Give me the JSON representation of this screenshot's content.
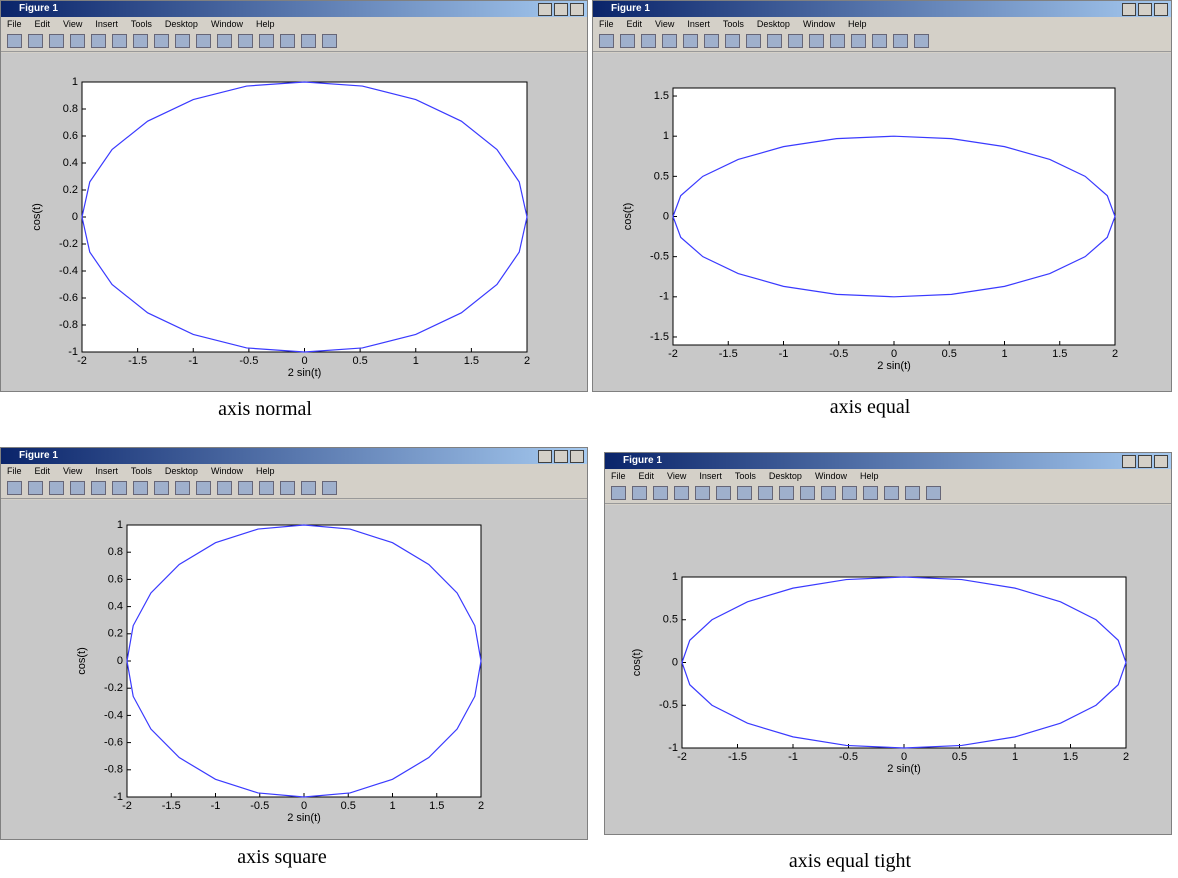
{
  "windows": [
    {
      "title": "Figure 1",
      "menu": [
        "File",
        "Edit",
        "View",
        "Insert",
        "Tools",
        "Desktop",
        "Window",
        "Help"
      ]
    },
    {
      "title": "Figure 1",
      "menu": [
        "File",
        "Edit",
        "View",
        "Insert",
        "Tools",
        "Desktop",
        "Window",
        "Help"
      ]
    },
    {
      "title": "Figure 1",
      "menu": [
        "File",
        "Edit",
        "View",
        "Insert",
        "Tools",
        "Desktop",
        "Window",
        "Help"
      ]
    },
    {
      "title": "Figure 1",
      "menu": [
        "File",
        "Edit",
        "View",
        "Insert",
        "Tools",
        "Desktop",
        "Window",
        "Help"
      ]
    }
  ],
  "captions": [
    "axis normal",
    "axis equal",
    "axis square",
    "axis equal tight"
  ],
  "chart_data": [
    {
      "type": "line",
      "xlabel": "2 sin(t)",
      "ylabel": "cos(t)",
      "x": [
        0,
        0.52,
        1,
        1.41,
        1.73,
        1.93,
        2,
        1.93,
        1.73,
        1.41,
        1,
        0.52,
        0,
        -0.52,
        -1,
        -1.41,
        -1.73,
        -1.93,
        -2,
        -1.93,
        -1.73,
        -1.41,
        -1,
        -0.52,
        0
      ],
      "series": [
        {
          "color": "#3a3aff",
          "values": [
            1,
            0.97,
            0.87,
            0.71,
            0.5,
            0.26,
            0,
            -0.26,
            -0.5,
            -0.71,
            -0.87,
            -0.97,
            -1,
            -0.97,
            -0.87,
            -0.71,
            -0.5,
            -0.26,
            0,
            0.26,
            0.5,
            0.71,
            0.87,
            0.97,
            1
          ]
        }
      ],
      "xlim": [
        -2,
        2
      ],
      "ylim": [
        -1,
        1
      ],
      "xticks": [
        -2,
        -1.5,
        -1,
        -0.5,
        0,
        0.5,
        1,
        1.5,
        2
      ],
      "yticks": [
        -1,
        -0.8,
        -0.6,
        -0.4,
        -0.2,
        0,
        0.2,
        0.4,
        0.6,
        0.8,
        1
      ]
    },
    {
      "type": "line",
      "xlabel": "2 sin(t)",
      "ylabel": "cos(t)",
      "x": [
        0,
        0.52,
        1,
        1.41,
        1.73,
        1.93,
        2,
        1.93,
        1.73,
        1.41,
        1,
        0.52,
        0,
        -0.52,
        -1,
        -1.41,
        -1.73,
        -1.93,
        -2,
        -1.93,
        -1.73,
        -1.41,
        -1,
        -0.52,
        0
      ],
      "series": [
        {
          "color": "#3a3aff",
          "values": [
            1,
            0.97,
            0.87,
            0.71,
            0.5,
            0.26,
            0,
            -0.26,
            -0.5,
            -0.71,
            -0.87,
            -0.97,
            -1,
            -0.97,
            -0.87,
            -0.71,
            -0.5,
            -0.26,
            0,
            0.26,
            0.5,
            0.71,
            0.87,
            0.97,
            1
          ]
        }
      ],
      "xlim": [
        -2,
        2
      ],
      "ylim": [
        -1.6,
        1.6
      ],
      "xticks": [
        -2,
        -1.5,
        -1,
        -0.5,
        0,
        0.5,
        1,
        1.5,
        2
      ],
      "yticks": [
        -1.5,
        -1,
        -0.5,
        0,
        0.5,
        1,
        1.5
      ]
    },
    {
      "type": "line",
      "xlabel": "2 sin(t)",
      "ylabel": "cos(t)",
      "x": [
        0,
        0.52,
        1,
        1.41,
        1.73,
        1.93,
        2,
        1.93,
        1.73,
        1.41,
        1,
        0.52,
        0,
        -0.52,
        -1,
        -1.41,
        -1.73,
        -1.93,
        -2,
        -1.93,
        -1.73,
        -1.41,
        -1,
        -0.52,
        0
      ],
      "series": [
        {
          "color": "#3a3aff",
          "values": [
            1,
            0.97,
            0.87,
            0.71,
            0.5,
            0.26,
            0,
            -0.26,
            -0.5,
            -0.71,
            -0.87,
            -0.97,
            -1,
            -0.97,
            -0.87,
            -0.71,
            -0.5,
            -0.26,
            0,
            0.26,
            0.5,
            0.71,
            0.87,
            0.97,
            1
          ]
        }
      ],
      "xlim": [
        -2,
        2
      ],
      "ylim": [
        -1,
        1
      ],
      "xticks": [
        -2,
        -1.5,
        -1,
        -0.5,
        0,
        0.5,
        1,
        1.5,
        2
      ],
      "yticks": [
        -1,
        -0.8,
        -0.6,
        -0.4,
        -0.2,
        0,
        0.2,
        0.4,
        0.6,
        0.8,
        1
      ]
    },
    {
      "type": "line",
      "xlabel": "2 sin(t)",
      "ylabel": "cos(t)",
      "x": [
        0,
        0.52,
        1,
        1.41,
        1.73,
        1.93,
        2,
        1.93,
        1.73,
        1.41,
        1,
        0.52,
        0,
        -0.52,
        -1,
        -1.41,
        -1.73,
        -1.93,
        -2,
        -1.93,
        -1.73,
        -1.41,
        -1,
        -0.52,
        0
      ],
      "series": [
        {
          "color": "#3a3aff",
          "values": [
            1,
            0.97,
            0.87,
            0.71,
            0.5,
            0.26,
            0,
            -0.26,
            -0.5,
            -0.71,
            -0.87,
            -0.97,
            -1,
            -0.97,
            -0.87,
            -0.71,
            -0.5,
            -0.26,
            0,
            0.26,
            0.5,
            0.71,
            0.87,
            0.97,
            1
          ]
        }
      ],
      "xlim": [
        -2,
        2
      ],
      "ylim": [
        -1,
        1
      ],
      "xticks": [
        -2,
        -1.5,
        -1,
        -0.5,
        0,
        0.5,
        1,
        1.5,
        2
      ],
      "yticks": [
        -1,
        -0.5,
        0,
        0.5,
        1
      ]
    }
  ]
}
